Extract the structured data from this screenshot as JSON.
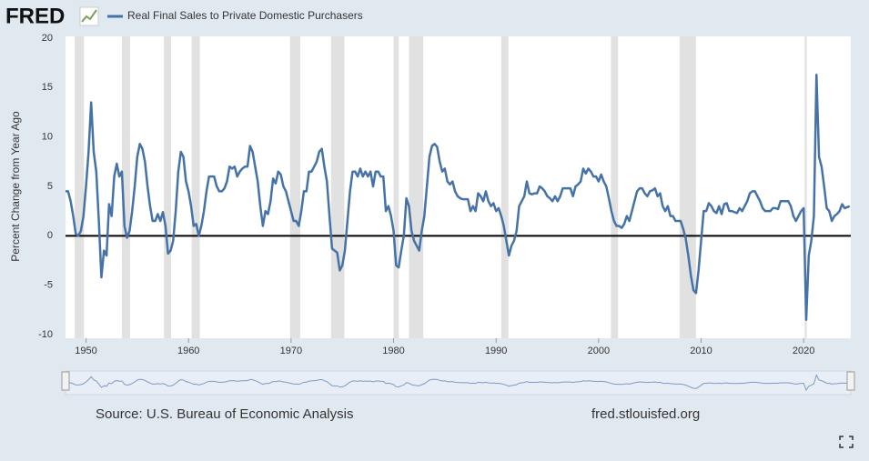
{
  "chart_data": {
    "type": "line",
    "logo": "FRED",
    "source": "Source: U.S. Bureau of Economic Analysis",
    "site": "fred.stlouisfed.org",
    "y_label": "Percent Change from Year Ago",
    "xlim": [
      1948,
      2024.6
    ],
    "ylim": [
      -10,
      20
    ],
    "xticks": [
      1950,
      1960,
      1970,
      1980,
      1990,
      2000,
      2010,
      2020
    ],
    "yticks": [
      -10,
      -5,
      0,
      5,
      10,
      15,
      20
    ],
    "recessions": [
      [
        1948.9,
        1949.8
      ],
      [
        1953.5,
        1954.3
      ],
      [
        1957.6,
        1958.3
      ],
      [
        1960.3,
        1961.1
      ],
      [
        1969.9,
        1970.9
      ],
      [
        1973.9,
        1975.2
      ],
      [
        1980.0,
        1980.5
      ],
      [
        1981.5,
        1982.9
      ],
      [
        1990.5,
        1991.2
      ],
      [
        2001.2,
        2001.9
      ],
      [
        2007.9,
        2009.5
      ],
      [
        2020.1,
        2020.3
      ]
    ],
    "series": [
      {
        "name": "Real Final Sales to Private Domestic Purchasers",
        "color": "#4572a7",
        "x": [
          1948,
          1948.25,
          1948.5,
          1948.75,
          1949,
          1949.25,
          1949.5,
          1949.75,
          1950,
          1950.25,
          1950.5,
          1950.75,
          1951,
          1951.25,
          1951.5,
          1951.75,
          1952,
          1952.25,
          1952.5,
          1952.75,
          1953,
          1953.25,
          1953.5,
          1953.75,
          1954,
          1954.25,
          1954.5,
          1954.75,
          1955,
          1955.25,
          1955.5,
          1955.75,
          1956,
          1956.25,
          1956.5,
          1956.75,
          1957,
          1957.25,
          1957.5,
          1957.75,
          1958,
          1958.25,
          1958.5,
          1958.75,
          1959,
          1959.25,
          1959.5,
          1959.75,
          1960,
          1960.25,
          1960.5,
          1960.75,
          1961,
          1961.25,
          1961.5,
          1961.75,
          1962,
          1962.25,
          1962.5,
          1962.75,
          1963,
          1963.25,
          1963.5,
          1963.75,
          1964,
          1964.25,
          1964.5,
          1964.75,
          1965,
          1965.25,
          1965.5,
          1965.75,
          1966,
          1966.25,
          1966.5,
          1966.75,
          1967,
          1967.25,
          1967.5,
          1967.75,
          1968,
          1968.25,
          1968.5,
          1968.75,
          1969,
          1969.25,
          1969.5,
          1969.75,
          1970,
          1970.25,
          1970.5,
          1970.75,
          1971,
          1971.25,
          1971.5,
          1971.75,
          1972,
          1972.25,
          1972.5,
          1972.75,
          1973,
          1973.25,
          1973.5,
          1973.75,
          1974,
          1974.25,
          1974.5,
          1974.75,
          1975,
          1975.25,
          1975.5,
          1975.75,
          1976,
          1976.25,
          1976.5,
          1976.75,
          1977,
          1977.25,
          1977.5,
          1977.75,
          1978,
          1978.25,
          1978.5,
          1978.75,
          1979,
          1979.25,
          1979.5,
          1979.75,
          1980,
          1980.25,
          1980.5,
          1980.75,
          1981,
          1981.25,
          1981.5,
          1981.75,
          1982,
          1982.25,
          1982.5,
          1982.75,
          1983,
          1983.25,
          1983.5,
          1983.75,
          1984,
          1984.25,
          1984.5,
          1984.75,
          1985,
          1985.25,
          1985.5,
          1985.75,
          1986,
          1986.25,
          1986.5,
          1986.75,
          1987,
          1987.25,
          1987.5,
          1987.75,
          1988,
          1988.25,
          1988.5,
          1988.75,
          1989,
          1989.25,
          1989.5,
          1989.75,
          1990,
          1990.25,
          1990.5,
          1990.75,
          1991,
          1991.25,
          1991.5,
          1991.75,
          1992,
          1992.25,
          1992.5,
          1992.75,
          1993,
          1993.25,
          1993.5,
          1993.75,
          1994,
          1994.25,
          1994.5,
          1994.75,
          1995,
          1995.25,
          1995.5,
          1995.75,
          1996,
          1996.25,
          1996.5,
          1996.75,
          1997,
          1997.25,
          1997.5,
          1997.75,
          1998,
          1998.25,
          1998.5,
          1998.75,
          1999,
          1999.25,
          1999.5,
          1999.75,
          2000,
          2000.25,
          2000.5,
          2000.75,
          2001,
          2001.25,
          2001.5,
          2001.75,
          2002,
          2002.25,
          2002.5,
          2002.75,
          2003,
          2003.25,
          2003.5,
          2003.75,
          2004,
          2004.25,
          2004.5,
          2004.75,
          2005,
          2005.25,
          2005.5,
          2005.75,
          2006,
          2006.25,
          2006.5,
          2006.75,
          2007,
          2007.25,
          2007.5,
          2007.75,
          2008,
          2008.25,
          2008.5,
          2008.75,
          2009,
          2009.25,
          2009.5,
          2009.75,
          2010,
          2010.25,
          2010.5,
          2010.75,
          2011,
          2011.25,
          2011.5,
          2011.75,
          2012,
          2012.25,
          2012.5,
          2012.75,
          2013,
          2013.25,
          2013.5,
          2013.75,
          2014,
          2014.25,
          2014.5,
          2014.75,
          2015,
          2015.25,
          2015.5,
          2015.75,
          2016,
          2016.25,
          2016.5,
          2016.75,
          2017,
          2017.25,
          2017.5,
          2017.75,
          2018,
          2018.25,
          2018.5,
          2018.75,
          2019,
          2019.25,
          2019.5,
          2019.75,
          2020,
          2020.25,
          2020.5,
          2020.75,
          2021,
          2021.25,
          2021.5,
          2021.75,
          2022,
          2022.25,
          2022.5,
          2022.75,
          2023,
          2023.25,
          2023.5,
          2023.75,
          2024,
          2024.25,
          2024.5
        ],
        "values": [
          4.5,
          4.5,
          3.5,
          2,
          0.2,
          0,
          0.5,
          2,
          5,
          8.5,
          13.5,
          8.5,
          6.5,
          1.5,
          -4.2,
          -1.5,
          -2,
          3.2,
          2,
          6,
          7.3,
          6,
          6.5,
          1,
          -0.2,
          0.5,
          2.5,
          5,
          8,
          9.3,
          8.8,
          7.5,
          5,
          3,
          1.5,
          1.5,
          2.2,
          1.5,
          2.4,
          1,
          -1.8,
          -1.5,
          -0.5,
          2.5,
          6.5,
          8.5,
          8,
          5.5,
          4.5,
          3,
          1,
          1.2,
          0,
          1,
          2.5,
          4.5,
          6,
          6,
          6,
          5,
          4.5,
          4.5,
          4.8,
          5.5,
          7,
          6.8,
          7,
          6,
          6.5,
          6.8,
          7,
          7,
          9.1,
          8.5,
          7,
          5.5,
          3,
          1,
          2.5,
          2.2,
          3.5,
          5.8,
          5.3,
          6.5,
          6.2,
          5,
          4.5,
          3.5,
          2.5,
          1.5,
          1.5,
          1,
          2.5,
          4.5,
          4.5,
          6.5,
          6.5,
          7,
          7.5,
          8.5,
          8.8,
          7,
          5.5,
          2,
          -1.3,
          -1.5,
          -1.7,
          -3.5,
          -3,
          -1.5,
          1.5,
          4.5,
          6.5,
          6.5,
          6,
          6.8,
          6,
          6.5,
          6,
          6.5,
          5,
          6.5,
          6.5,
          6,
          6,
          2.5,
          3,
          2,
          0.5,
          -3,
          -3.2,
          -1.5,
          0,
          3.8,
          3,
          0.5,
          -0.5,
          -1,
          -1.5,
          0.5,
          2,
          5,
          8,
          9.1,
          9.3,
          9,
          7.5,
          6.5,
          6.8,
          5.5,
          5.2,
          5.5,
          4.5,
          4,
          3.8,
          3.7,
          3.7,
          3.7,
          2.5,
          3,
          2.5,
          4.3,
          4,
          3.5,
          4.5,
          3.5,
          3,
          3.3,
          2.5,
          2.8,
          2,
          1,
          -0.5,
          -2,
          -1,
          -0.5,
          0.5,
          3,
          3.5,
          4,
          5.5,
          4.3,
          4.2,
          4.3,
          4.3,
          5,
          4.8,
          4.5,
          4,
          3.8,
          3.5,
          4,
          3.5,
          4,
          4.8,
          4.8,
          4.8,
          4.8,
          4,
          5,
          5.2,
          5.5,
          6.8,
          6.3,
          6.8,
          6.5,
          6,
          6,
          5.5,
          6.2,
          5.5,
          5,
          3.8,
          2.5,
          1.5,
          1,
          1,
          0.8,
          1.2,
          2,
          1.5,
          2.5,
          3.5,
          4.5,
          4.8,
          4.8,
          4.3,
          4,
          4.5,
          4.6,
          4.8,
          4,
          4.3,
          3,
          2.5,
          3,
          2,
          2,
          1.5,
          1.5,
          1.5,
          0.7,
          -0.3,
          -2,
          -4,
          -5.5,
          -5.8,
          -3.5,
          -0.5,
          2.5,
          2.5,
          3.3,
          3,
          2.5,
          2.3,
          3,
          2.2,
          3.2,
          3.3,
          2.5,
          2.5,
          2.4,
          2.3,
          2.8,
          2.5,
          3,
          3.5,
          4.3,
          4.5,
          4.5,
          4,
          3.5,
          2.8,
          2.5,
          2.5,
          2.5,
          2.8,
          2.8,
          2.7,
          3.5,
          3.5,
          3.5,
          3.5,
          3,
          2,
          1.5,
          2,
          2.5,
          2.8,
          -8.5,
          -2,
          -0.5,
          2,
          16.3,
          8,
          7,
          5,
          2.8,
          2.5,
          1.5,
          2,
          2.2,
          2.5,
          3.2,
          2.8,
          2.9,
          3
        ]
      }
    ]
  }
}
